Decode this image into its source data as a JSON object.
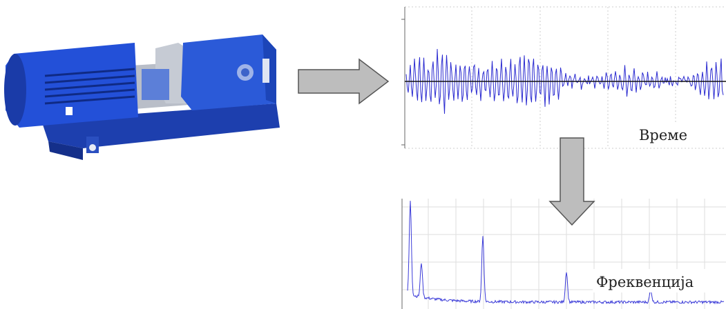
{
  "labels": {
    "time": "Време",
    "frequency": "Фреквенција"
  }
}
